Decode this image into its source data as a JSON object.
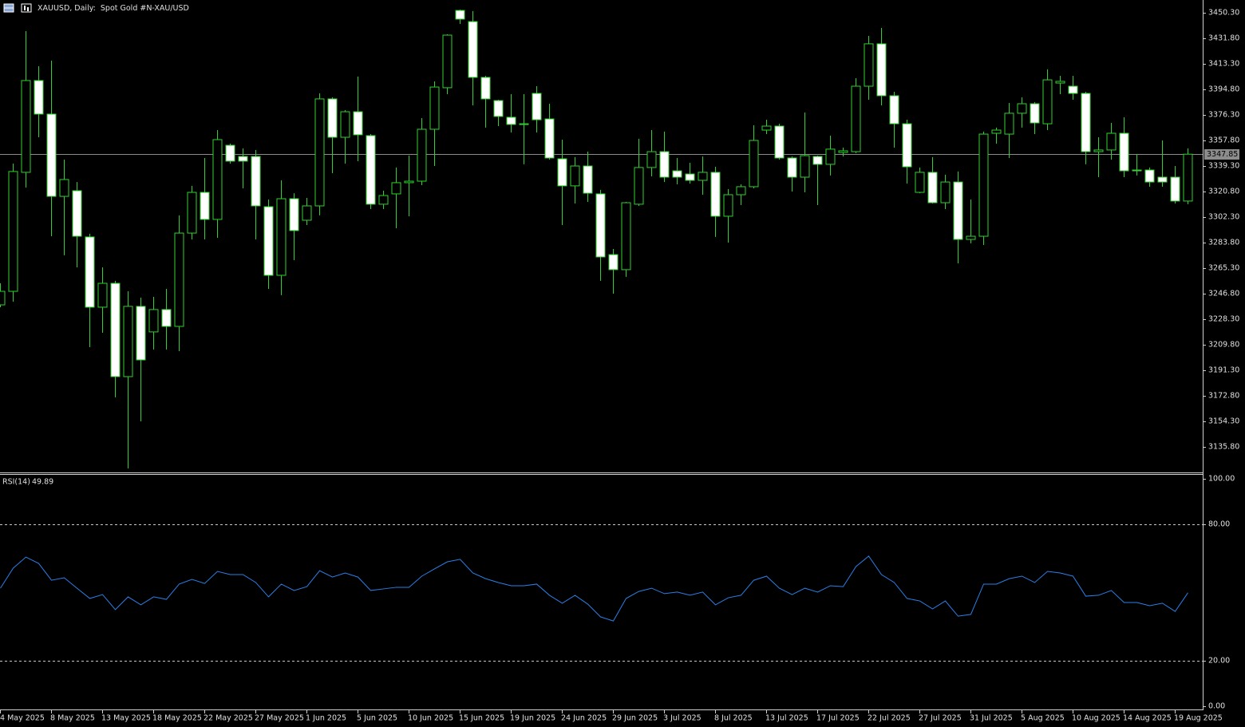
{
  "chart_data": [
    {
      "type": "candlestick",
      "title": "XAUUSD, Daily:  Spot Gold #N-XAU/USD",
      "categories": [
        "4 May 2025",
        null,
        null,
        null,
        "8 May 2025",
        null,
        null,
        null,
        "13 May 2025",
        null,
        null,
        null,
        "18 May 2025",
        null,
        null,
        null,
        "22 May 2025",
        null,
        null,
        null,
        "27 May 2025",
        null,
        null,
        null,
        "1 Jun 2025",
        null,
        null,
        null,
        "5 Jun 2025",
        null,
        null,
        null,
        "10 Jun 2025",
        null,
        null,
        null,
        "15 Jun 2025",
        null,
        null,
        null,
        "19 Jun 2025",
        null,
        null,
        null,
        "24 Jun 2025",
        null,
        null,
        null,
        "29 Jun 2025",
        null,
        null,
        null,
        "3 Jul 2025",
        null,
        null,
        null,
        "8 Jul 2025",
        null,
        null,
        null,
        "13 Jul 2025",
        null,
        null,
        null,
        "17 Jul 2025",
        null,
        null,
        null,
        "22 Jul 2025",
        null,
        null,
        null,
        "27 Jul 2025",
        null,
        null,
        null,
        "31 Jul 2025",
        null,
        null,
        null,
        "5 Aug 2025",
        null,
        null,
        null,
        "10 Aug 2025",
        null,
        null,
        null,
        "14 Aug 2025",
        null,
        null,
        null,
        "19 Aug 2025",
        null
      ],
      "open": [
        3238.7,
        3248.5,
        3334.7,
        3401.2,
        3376.9,
        3317.3,
        3321.4,
        3287.9,
        3237.0,
        3254.3,
        3186.7,
        3237.6,
        3219.1,
        3235.3,
        3223.1,
        3290.7,
        3320.2,
        3300.6,
        3354.3,
        3346.2,
        3346.2,
        3309.8,
        3260.1,
        3315.6,
        3300.0,
        3310.4,
        3387.9,
        3360.1,
        3378.6,
        3361.3,
        3311.6,
        3319.1,
        3327.2,
        3328.3,
        3365.9,
        3396.0,
        3452.0,
        3443.9,
        3403.5,
        3386.7,
        3374.6,
        3369.9,
        3391.9,
        3373.4,
        3344.5,
        3324.9,
        3339.3,
        3319.1,
        3275.1,
        3264.2,
        3311.6,
        3338.2,
        3349.7,
        3335.8,
        3333.5,
        3328.9,
        3334.7,
        3302.9,
        3318.5,
        3324.3,
        3365.3,
        3368.2,
        3345.1,
        3331.2,
        3346.2,
        3340.5,
        3349.1,
        3349.7,
        3397.1,
        3427.8,
        3390.2,
        3369.9,
        3320.2,
        3334.7,
        3312.7,
        3327.7,
        3286.1,
        3288.4,
        3363.0,
        3362.4,
        3377.5,
        3384.4,
        3369.9,
        3399.4,
        3397.1,
        3391.9,
        3349.7,
        3350.9,
        3363.0,
        3336.4,
        3336.4,
        3331.2,
        3331.2,
        3313.9
      ],
      "high": [
        3254.3,
        3341.0,
        3437.0,
        3411.6,
        3415.6,
        3343.9,
        3327.7,
        3290.2,
        3265.9,
        3256.1,
        3248.5,
        3243.9,
        3244.5,
        3250.3,
        3303.5,
        3324.9,
        3345.1,
        3365.3,
        3355.5,
        3352.0,
        3350.9,
        3315.0,
        3328.9,
        3319.6,
        3316.2,
        3391.9,
        3389.0,
        3379.8,
        3404.1,
        3362.4,
        3321.4,
        3338.2,
        3346.8,
        3374.0,
        3400.6,
        3434.7,
        3452.6,
        3451.5,
        3404.6,
        3387.3,
        3391.3,
        3391.3,
        3397.1,
        3384.4,
        3358.4,
        3345.7,
        3349.7,
        3322.0,
        3279.2,
        3313.3,
        3359.0,
        3365.3,
        3364.2,
        3345.1,
        3341.6,
        3346.2,
        3338.7,
        3322.5,
        3326.0,
        3368.8,
        3372.8,
        3369.9,
        3346.2,
        3378.0,
        3346.8,
        3361.3,
        3352.6,
        3402.9,
        3433.5,
        3439.3,
        3393.1,
        3372.8,
        3338.2,
        3345.7,
        3333.0,
        3335.3,
        3315.0,
        3364.2,
        3367.1,
        3385.0,
        3389.0,
        3385.6,
        3409.3,
        3404.6,
        3404.6,
        3393.1,
        3360.1,
        3370.5,
        3374.6,
        3348.0,
        3338.2,
        3357.8,
        3339.3,
        3352.0
      ],
      "low": [
        3237.0,
        3241.0,
        3323.7,
        3360.1,
        3288.4,
        3274.6,
        3265.9,
        3208.1,
        3218.5,
        3171.7,
        3120.2,
        3154.3,
        3206.3,
        3206.3,
        3205.2,
        3286.1,
        3286.1,
        3287.3,
        3341.0,
        3323.1,
        3286.1,
        3250.3,
        3245.7,
        3271.1,
        3296.5,
        3303.5,
        3334.1,
        3341.0,
        3342.8,
        3308.1,
        3308.1,
        3294.2,
        3302.9,
        3325.4,
        3339.3,
        3391.3,
        3442.2,
        3383.2,
        3367.1,
        3368.2,
        3363.6,
        3340.5,
        3363.6,
        3343.9,
        3296.5,
        3312.1,
        3313.3,
        3256.1,
        3246.8,
        3259.0,
        3310.4,
        3331.8,
        3327.7,
        3326.0,
        3326.6,
        3318.5,
        3287.9,
        3283.8,
        3311.0,
        3323.1,
        3362.4,
        3343.9,
        3320.8,
        3320.2,
        3311.0,
        3332.4,
        3346.2,
        3348.6,
        3387.3,
        3383.2,
        3352.6,
        3326.6,
        3319.6,
        3312.1,
        3308.1,
        3268.8,
        3283.2,
        3282.1,
        3355.5,
        3345.1,
        3367.1,
        3362.4,
        3365.3,
        3391.3,
        3387.3,
        3340.5,
        3331.2,
        3343.9,
        3331.2,
        3332.4,
        3324.3,
        3324.3,
        3312.1,
        3311.6
      ],
      "close": [
        3248.5,
        3335.3,
        3401.2,
        3376.9,
        3317.3,
        3329.5,
        3288.4,
        3237.0,
        3254.3,
        3186.7,
        3237.6,
        3198.8,
        3235.3,
        3223.1,
        3290.7,
        3320.2,
        3300.6,
        3358.4,
        3342.8,
        3342.8,
        3310.4,
        3260.1,
        3315.6,
        3292.5,
        3310.4,
        3387.9,
        3360.1,
        3378.6,
        3361.9,
        3311.6,
        3317.9,
        3327.2,
        3328.3,
        3365.9,
        3396.5,
        3434.1,
        3445.7,
        3403.5,
        3387.9,
        3375.2,
        3369.4,
        3369.4,
        3372.8,
        3345.1,
        3324.9,
        3339.3,
        3319.6,
        3273.4,
        3264.2,
        3312.7,
        3338.2,
        3349.7,
        3331.2,
        3331.2,
        3328.9,
        3334.7,
        3302.9,
        3318.5,
        3324.3,
        3357.8,
        3368.2,
        3345.1,
        3331.2,
        3346.8,
        3340.5,
        3351.5,
        3350.3,
        3397.1,
        3427.8,
        3390.2,
        3369.9,
        3338.7,
        3334.7,
        3312.7,
        3327.7,
        3286.1,
        3288.4,
        3362.4,
        3365.3,
        3377.5,
        3384.4,
        3370.5,
        3401.7,
        3400.6,
        3391.9,
        3349.7,
        3350.9,
        3363.0,
        3335.8,
        3335.8,
        3327.7,
        3327.7,
        3313.9,
        3347.85
      ],
      "ylim": [
        3117.3,
        3459.55
      ],
      "yticks": [
        {
          "value": 3450.3,
          "label": "3450.30"
        },
        {
          "value": 3431.8,
          "label": "3431.80"
        },
        {
          "value": 3413.3,
          "label": "3413.30"
        },
        {
          "value": 3394.8,
          "label": "3394.80"
        },
        {
          "value": 3376.3,
          "label": "3376.30"
        },
        {
          "value": 3357.8,
          "label": "3357.80"
        },
        {
          "value": 3339.3,
          "label": "3339.30"
        },
        {
          "value": 3320.8,
          "label": "3320.80"
        },
        {
          "value": 3302.3,
          "label": "3302.30"
        },
        {
          "value": 3283.8,
          "label": "3283.80"
        },
        {
          "value": 3265.3,
          "label": "3265.30"
        },
        {
          "value": 3246.8,
          "label": "3246.80"
        },
        {
          "value": 3228.3,
          "label": "3228.30"
        },
        {
          "value": 3209.8,
          "label": "3209.80"
        },
        {
          "value": 3191.3,
          "label": "3191.30"
        },
        {
          "value": 3172.8,
          "label": "3172.80"
        },
        {
          "value": 3154.3,
          "label": "3154.30"
        },
        {
          "value": 3135.8,
          "label": "3135.80"
        }
      ],
      "up_color": "#000000",
      "down_color": "#ffffff",
      "line_color": "#2fd02f",
      "price_line": true
    },
    {
      "type": "line",
      "series": [
        {
          "name": "RSI(14)",
          "color": "#2b7fe6",
          "values": [
            51.9,
            60.7,
            65.6,
            62.8,
            55.4,
            56.5,
            51.9,
            47.4,
            49.1,
            42.5,
            48.1,
            44.6,
            48.1,
            47.0,
            53.7,
            55.8,
            54.0,
            59.3,
            57.9,
            57.9,
            54.4,
            48.1,
            53.7,
            50.9,
            52.6,
            59.6,
            56.8,
            58.6,
            56.8,
            50.9,
            51.6,
            52.3,
            52.3,
            57.2,
            60.4,
            63.5,
            64.6,
            58.6,
            56.1,
            54.4,
            53.0,
            53.0,
            53.7,
            48.8,
            45.3,
            48.8,
            44.9,
            39.3,
            37.5,
            47.4,
            50.5,
            51.9,
            49.5,
            50.2,
            48.8,
            50.2,
            44.6,
            47.7,
            48.8,
            55.4,
            57.2,
            51.9,
            49.1,
            51.9,
            50.2,
            53.0,
            52.6,
            61.4,
            66.0,
            57.9,
            54.4,
            47.4,
            46.3,
            42.8,
            46.3,
            39.6,
            40.4,
            53.7,
            53.7,
            56.1,
            57.2,
            54.4,
            59.3,
            58.6,
            57.2,
            48.4,
            48.8,
            50.9,
            45.6,
            45.6,
            44.2,
            45.3,
            41.7,
            49.89
          ]
        }
      ],
      "ylim": [
        0,
        100
      ],
      "yticks": [
        {
          "value": 100,
          "label": "100.00"
        },
        {
          "value": 80,
          "label": "80.00"
        },
        {
          "value": 20,
          "label": "20.00"
        },
        {
          "value": 0,
          "label": "0.00"
        }
      ],
      "grid": "dashed"
    }
  ]
}
